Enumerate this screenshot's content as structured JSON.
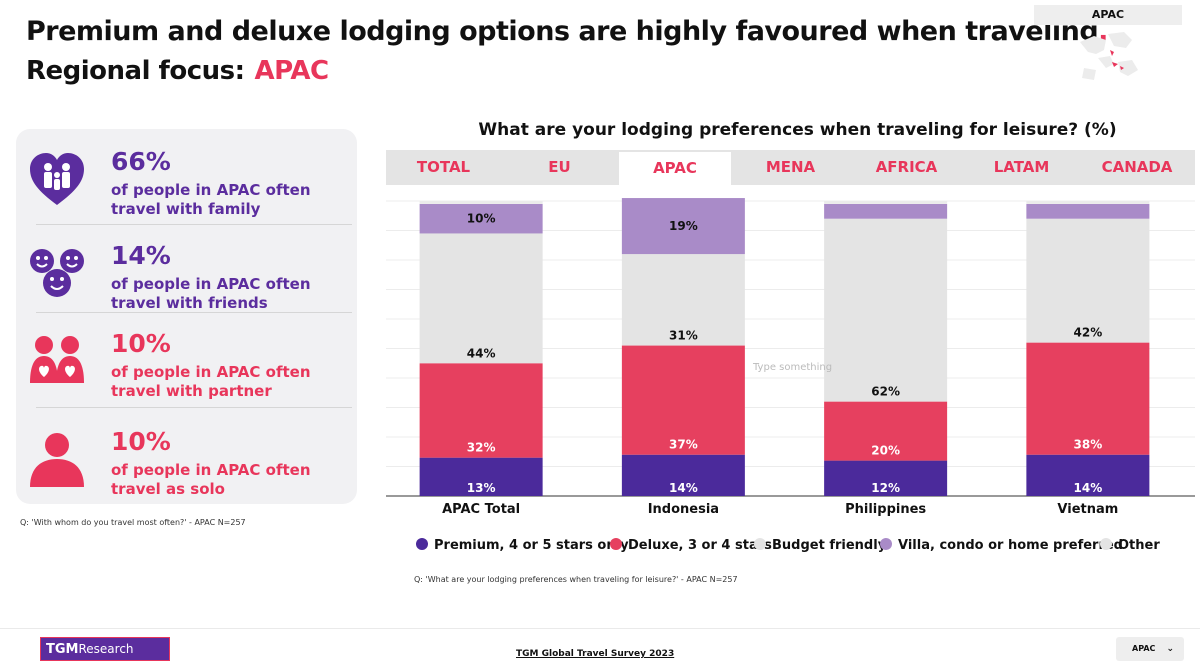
{
  "header": {
    "title": "Premium and deluxe lodging options are highly favoured when traveling",
    "title_dot": ".",
    "subtitle_label": "Regional focus:",
    "subtitle_region": "APAC"
  },
  "region_widget": {
    "label": "APAC"
  },
  "left_panel": {
    "stats": [
      {
        "pct": "66%",
        "desc": "of people in APAC often travel with family",
        "icon": "family-heart-icon",
        "color": "#5b2d9e"
      },
      {
        "pct": "14%",
        "desc": "of people in APAC often travel with friends",
        "icon": "friends-smiley-icon",
        "color": "#5b2d9e"
      },
      {
        "pct": "10%",
        "desc": "of people in APAC often travel with partner",
        "icon": "partner-couple-icon",
        "color": "#e8365b"
      },
      {
        "pct": "10%",
        "desc": "of people in APAC often travel as solo",
        "icon": "solo-person-icon",
        "color": "#e8365b"
      }
    ],
    "note": "Q: 'With whom do you travel most often?' - APAC N=257"
  },
  "chart_title": "What are your lodging preferences when traveling for leisure? (%)",
  "tabs": [
    {
      "label": "TOTAL",
      "active": false
    },
    {
      "label": "EU",
      "active": false
    },
    {
      "label": "APAC",
      "active": true
    },
    {
      "label": "MENA",
      "active": false
    },
    {
      "label": "AFRICA",
      "active": false
    },
    {
      "label": "LATAM",
      "active": false
    },
    {
      "label": "CANADA",
      "active": false
    }
  ],
  "type_hint": "Type something",
  "chart_data": {
    "type": "bar",
    "stacked": true,
    "categories": [
      "APAC Total",
      "Indonesia",
      "Philippines",
      "Vietnam"
    ],
    "series": [
      {
        "name": "Premium, 4 or 5 stars only",
        "color": "#4b2a9b",
        "values": [
          13,
          14,
          12,
          14
        ],
        "labels": [
          "13%",
          "14%",
          "12%",
          "14%"
        ]
      },
      {
        "name": "Deluxe, 3 or 4 stars",
        "color": "#e6405f",
        "values": [
          32,
          37,
          20,
          38
        ],
        "labels": [
          "32%",
          "37%",
          "20%",
          "38%"
        ]
      },
      {
        "name": "Budget friendly",
        "color": "#e4e4e4",
        "values": [
          44,
          31,
          62,
          42
        ],
        "labels": [
          "44%",
          "31%",
          "62%",
          "42%"
        ]
      },
      {
        "name": "Villa, condo or home preferred",
        "color": "#a98bc8",
        "values": [
          10,
          19,
          5,
          5
        ],
        "labels": [
          "10%",
          "19%",
          "",
          ""
        ]
      },
      {
        "name": "Other",
        "color": "#ebebeb",
        "values": [
          1,
          0,
          1,
          1
        ],
        "labels": [
          "",
          "",
          "",
          ""
        ]
      }
    ],
    "ylim": [
      0,
      100
    ],
    "grid": true,
    "legend_position": "bottom"
  },
  "chart_note": "Q: 'What are your lodging preferences when traveling for leisure?' - APAC N=257",
  "footer": {
    "logo_tgm": "TGM",
    "logo_research": "Research",
    "link": "TGM Global Travel Survey 2023",
    "page_select": "APAC"
  }
}
